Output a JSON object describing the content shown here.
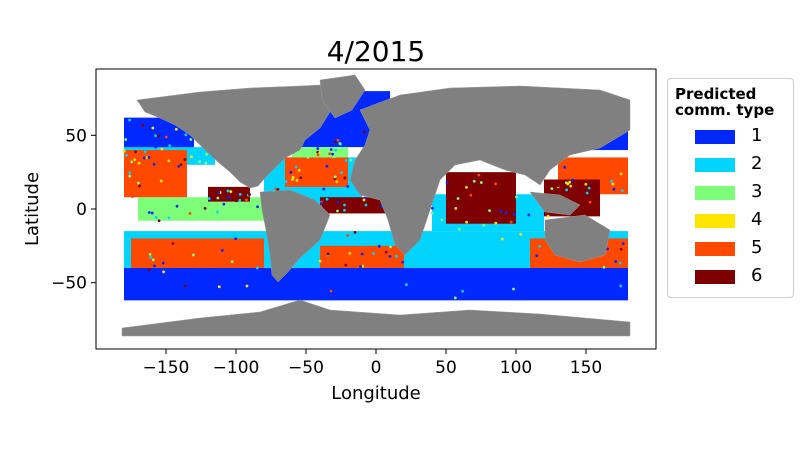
{
  "chart_data": {
    "type": "map-scatter",
    "title": "4/2015",
    "xlabel": "Longitude",
    "ylabel": "Latitude",
    "xlim": [
      -200,
      200
    ],
    "ylim": [
      -95,
      95
    ],
    "xticks": [
      -150,
      -100,
      -50,
      0,
      50,
      100,
      150
    ],
    "yticks": [
      -50,
      0,
      50
    ],
    "legend": {
      "title": "Predicted\ncomm. type",
      "placement": "right-outside",
      "entries": [
        {
          "label": "1",
          "color": "#0028ff"
        },
        {
          "label": "2",
          "color": "#00d4ff"
        },
        {
          "label": "3",
          "color": "#7dff7a"
        },
        {
          "label": "4",
          "color": "#ffe600"
        },
        {
          "label": "5",
          "color": "#ff4800"
        },
        {
          "label": "6",
          "color": "#7f0000"
        }
      ]
    },
    "land_color": "#808080",
    "regions": [
      {
        "type": "1",
        "lon": [
          -180,
          180
        ],
        "lat": [
          -62,
          -40
        ]
      },
      {
        "type": "1",
        "lon": [
          -180,
          -130
        ],
        "lat": [
          40,
          62
        ]
      },
      {
        "type": "1",
        "lon": [
          -60,
          10
        ],
        "lat": [
          42,
          80
        ]
      },
      {
        "type": "1",
        "lon": [
          120,
          180
        ],
        "lat": [
          40,
          62
        ]
      },
      {
        "type": "2",
        "lon": [
          -180,
          180
        ],
        "lat": [
          -40,
          -15
        ]
      },
      {
        "type": "2",
        "lon": [
          -180,
          -115
        ],
        "lat": [
          30,
          42
        ]
      },
      {
        "type": "2",
        "lon": [
          -80,
          -10
        ],
        "lat": [
          0,
          35
        ]
      },
      {
        "type": "2",
        "lon": [
          40,
          120
        ],
        "lat": [
          -15,
          10
        ]
      },
      {
        "type": "3",
        "lon": [
          -170,
          -80
        ],
        "lat": [
          -8,
          8
        ]
      },
      {
        "type": "3",
        "lon": [
          -60,
          -20
        ],
        "lat": [
          35,
          42
        ]
      },
      {
        "type": "5",
        "lon": [
          -180,
          -135
        ],
        "lat": [
          8,
          40
        ]
      },
      {
        "type": "5",
        "lon": [
          -65,
          -20
        ],
        "lat": [
          15,
          35
        ]
      },
      {
        "type": "5",
        "lon": [
          -175,
          -80
        ],
        "lat": [
          -40,
          -20
        ]
      },
      {
        "type": "5",
        "lon": [
          -40,
          20
        ],
        "lat": [
          -40,
          -25
        ]
      },
      {
        "type": "5",
        "lon": [
          130,
          180
        ],
        "lat": [
          10,
          35
        ]
      },
      {
        "type": "5",
        "lon": [
          110,
          180
        ],
        "lat": [
          -40,
          -20
        ]
      },
      {
        "type": "6",
        "lon": [
          50,
          100
        ],
        "lat": [
          -10,
          25
        ]
      },
      {
        "type": "6",
        "lon": [
          -120,
          -90
        ],
        "lat": [
          5,
          15
        ]
      },
      {
        "type": "6",
        "lon": [
          -40,
          10
        ],
        "lat": [
          -3,
          8
        ]
      },
      {
        "type": "6",
        "lon": [
          120,
          160
        ],
        "lat": [
          -5,
          20
        ]
      }
    ]
  }
}
